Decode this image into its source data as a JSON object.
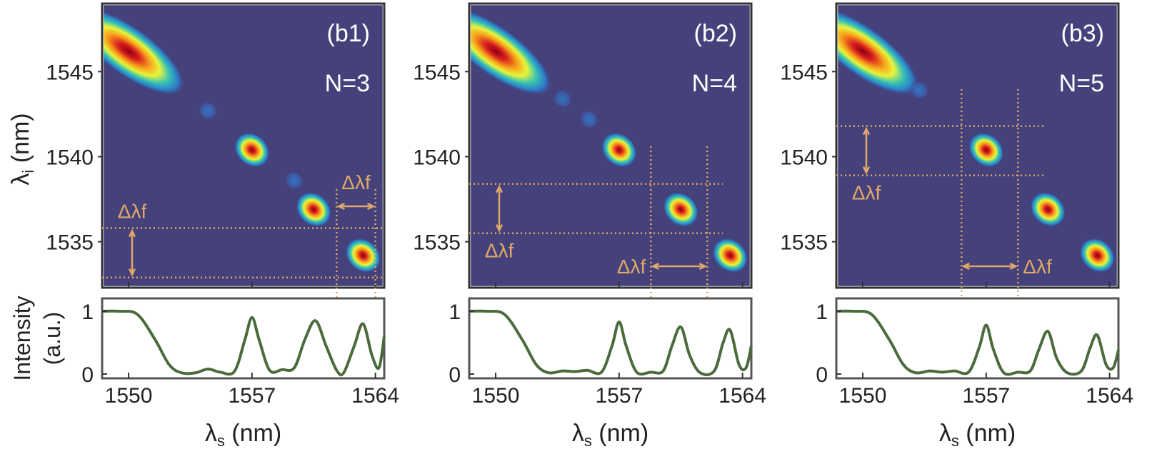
{
  "figure": {
    "colors": {
      "map_bg": "#45417a",
      "line": "#4a6b3c",
      "guide": "#e0a86a",
      "axis": "#333333"
    }
  },
  "chart_data": [
    {
      "type": "heatmap",
      "panel_label": "(b1)",
      "n_label": "N=3",
      "ylabel": "λi (nm)",
      "xlim": [
        1548.5,
        1564.5
      ],
      "ylim": [
        1532.3,
        1549
      ],
      "yticks": [
        1535,
        1540,
        1545
      ],
      "blobs": [
        {
          "x": 1550.0,
          "y": 1546.2,
          "strength": 1.0,
          "elongated": true
        },
        {
          "x": 1554.5,
          "y": 1542.7,
          "strength": 0.18,
          "elongated": false
        },
        {
          "x": 1557.0,
          "y": 1540.4,
          "strength": 0.95,
          "elongated": false
        },
        {
          "x": 1559.4,
          "y": 1538.6,
          "strength": 0.12,
          "elongated": false
        },
        {
          "x": 1560.5,
          "y": 1536.9,
          "strength": 0.9,
          "elongated": false
        },
        {
          "x": 1563.3,
          "y": 1534.2,
          "strength": 0.85,
          "elongated": false
        }
      ],
      "guides": {
        "hlines": [
          1535.8,
          1532.9
        ],
        "vlines": [
          1561.8,
          1564.0
        ],
        "v_arrow": {
          "x": 1549.5,
          "y1": 1535.8,
          "y2": 1532.9,
          "label": "Δλf",
          "label_pos": "above"
        },
        "h_arrow": {
          "y": 1537.0,
          "x1": 1561.8,
          "x2": 1564.0,
          "label": "Δλf",
          "label_pos": "above"
        }
      },
      "line": {
        "ylabel": "Intensity (a.u.)",
        "xlabel": "λs (nm)",
        "xticks": [
          1550,
          1557,
          1564
        ],
        "yticks": [
          0,
          1
        ],
        "x": [
          1548.5,
          1549.5,
          1550.5,
          1551.5,
          1552.3,
          1553.0,
          1553.8,
          1554.5,
          1555.2,
          1556.0,
          1556.6,
          1557.0,
          1557.4,
          1558.0,
          1558.7,
          1559.4,
          1560.0,
          1560.6,
          1561.2,
          1561.8,
          1562.2,
          1562.8,
          1563.3,
          1563.8,
          1564.2,
          1564.5
        ],
        "y": [
          1.0,
          1.0,
          0.95,
          0.55,
          0.15,
          0.02,
          0.02,
          0.08,
          0.03,
          0.04,
          0.55,
          0.9,
          0.55,
          0.06,
          0.07,
          0.1,
          0.55,
          0.85,
          0.45,
          0.06,
          0.02,
          0.45,
          0.8,
          0.3,
          0.1,
          0.6
        ]
      }
    },
    {
      "type": "heatmap",
      "panel_label": "(b2)",
      "n_label": "N=4",
      "ylabel": "",
      "xlim": [
        1548.5,
        1564.5
      ],
      "ylim": [
        1532.3,
        1549
      ],
      "yticks": [
        1535,
        1540,
        1545
      ],
      "blobs": [
        {
          "x": 1550.0,
          "y": 1546.2,
          "strength": 1.0,
          "elongated": true
        },
        {
          "x": 1553.8,
          "y": 1543.4,
          "strength": 0.15,
          "elongated": false
        },
        {
          "x": 1555.3,
          "y": 1542.2,
          "strength": 0.12,
          "elongated": false
        },
        {
          "x": 1557.0,
          "y": 1540.4,
          "strength": 0.9,
          "elongated": false
        },
        {
          "x": 1560.5,
          "y": 1536.9,
          "strength": 0.85,
          "elongated": false
        },
        {
          "x": 1563.3,
          "y": 1534.2,
          "strength": 0.8,
          "elongated": false
        }
      ],
      "guides": {
        "hlines": [
          1538.4,
          1535.5
        ],
        "vlines": [
          1558.8,
          1562.0
        ],
        "v_arrow": {
          "x": 1550.0,
          "y1": 1538.4,
          "y2": 1535.5,
          "label": "Δλf",
          "label_pos": "below"
        },
        "h_arrow": {
          "y": 1533.5,
          "x1": 1558.8,
          "x2": 1562.0,
          "label": "Δλf",
          "label_pos": "left"
        }
      },
      "line": {
        "ylabel": "",
        "xlabel": "λs (nm)",
        "xticks": [
          1550,
          1557,
          1564
        ],
        "yticks": [
          0,
          1
        ],
        "x": [
          1548.5,
          1549.5,
          1550.5,
          1551.5,
          1552.3,
          1553.0,
          1553.8,
          1554.5,
          1555.2,
          1556.0,
          1556.6,
          1557.0,
          1557.4,
          1558.0,
          1558.8,
          1559.5,
          1560.0,
          1560.5,
          1561.0,
          1561.6,
          1562.4,
          1562.9,
          1563.3,
          1563.8,
          1564.2,
          1564.5
        ],
        "y": [
          1.0,
          1.0,
          0.95,
          0.55,
          0.15,
          0.02,
          0.05,
          0.04,
          0.06,
          0.03,
          0.45,
          0.83,
          0.45,
          0.03,
          0.03,
          0.05,
          0.45,
          0.75,
          0.3,
          0.02,
          0.05,
          0.5,
          0.7,
          0.15,
          0.1,
          0.45
        ]
      }
    },
    {
      "type": "heatmap",
      "panel_label": "(b3)",
      "n_label": "N=5",
      "ylabel": "",
      "xlim": [
        1548.5,
        1564.5
      ],
      "ylim": [
        1532.3,
        1549
      ],
      "yticks": [
        1535,
        1540,
        1545
      ],
      "blobs": [
        {
          "x": 1550.0,
          "y": 1546.2,
          "strength": 1.0,
          "elongated": true
        },
        {
          "x": 1553.2,
          "y": 1543.9,
          "strength": 0.12,
          "elongated": false
        },
        {
          "x": 1557.0,
          "y": 1540.4,
          "strength": 0.88,
          "elongated": false
        },
        {
          "x": 1560.5,
          "y": 1536.9,
          "strength": 0.82,
          "elongated": false
        },
        {
          "x": 1563.3,
          "y": 1534.2,
          "strength": 0.78,
          "elongated": false
        }
      ],
      "guides": {
        "hlines": [
          1541.8,
          1538.9
        ],
        "vlines": [
          1555.6,
          1558.8
        ],
        "v_arrow": {
          "x": 1550.0,
          "y1": 1541.8,
          "y2": 1538.9,
          "label": "Δλf",
          "label_pos": "below"
        },
        "h_arrow": {
          "y": 1533.5,
          "x1": 1555.6,
          "x2": 1558.8,
          "label": "Δλf",
          "label_pos": "right"
        }
      },
      "line": {
        "ylabel": "",
        "xlabel": "λs (nm)",
        "xticks": [
          1550,
          1557,
          1564
        ],
        "yticks": [
          0,
          1
        ],
        "x": [
          1548.5,
          1549.5,
          1550.5,
          1551.5,
          1552.3,
          1553.0,
          1553.8,
          1554.5,
          1555.2,
          1556.0,
          1556.6,
          1557.0,
          1557.4,
          1558.0,
          1558.8,
          1559.5,
          1560.0,
          1560.5,
          1561.0,
          1561.6,
          1562.4,
          1562.9,
          1563.3,
          1563.8,
          1564.2,
          1564.5
        ],
        "y": [
          1.0,
          1.0,
          0.95,
          0.55,
          0.15,
          0.02,
          0.05,
          0.03,
          0.05,
          0.03,
          0.42,
          0.78,
          0.4,
          0.02,
          0.03,
          0.05,
          0.4,
          0.68,
          0.25,
          0.02,
          0.05,
          0.42,
          0.62,
          0.15,
          0.1,
          0.38
        ]
      }
    }
  ]
}
